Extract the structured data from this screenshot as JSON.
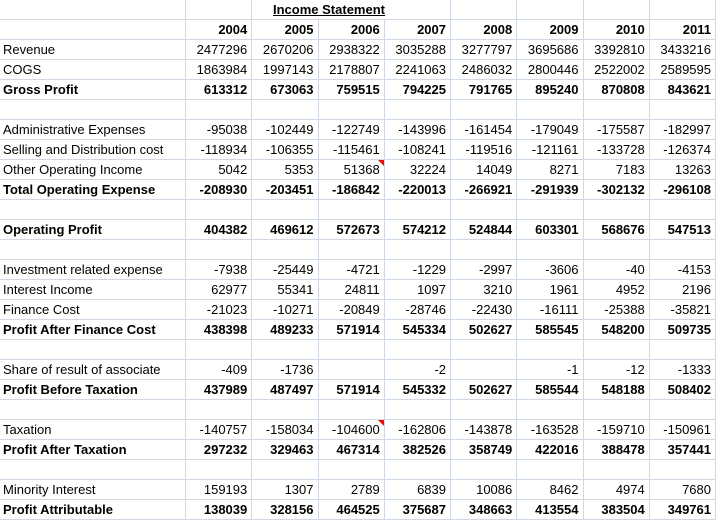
{
  "sheet": {
    "title": "Income Statement",
    "columns": [
      "2004",
      "2005",
      "2006",
      "2007",
      "2008",
      "2009",
      "2010",
      "2011"
    ],
    "rows": [
      {
        "label": "Revenue",
        "bold": false,
        "values": [
          "2477296",
          "2670206",
          "2938322",
          "3035288",
          "3277797",
          "3695686",
          "3392810",
          "3433216"
        ]
      },
      {
        "label": "COGS",
        "bold": false,
        "values": [
          "1863984",
          "1997143",
          "2178807",
          "2241063",
          "2486032",
          "2800446",
          "2522002",
          "2589595"
        ]
      },
      {
        "label": "Gross Profit",
        "bold": true,
        "values": [
          "613312",
          "673063",
          "759515",
          "794225",
          "791765",
          "895240",
          "870808",
          "843621"
        ]
      },
      {
        "label": "",
        "bold": false,
        "values": [
          "",
          "",
          "",
          "",
          "",
          "",
          "",
          ""
        ]
      },
      {
        "label": "Administrative Expenses",
        "bold": false,
        "values": [
          "-95038",
          "-102449",
          "-122749",
          "-143996",
          "-161454",
          "-179049",
          "-175587",
          "-182997"
        ]
      },
      {
        "label": "Selling and Distribution cost",
        "bold": false,
        "values": [
          "-118934",
          "-106355",
          "-115461",
          "-108241",
          "-119516",
          "-121161",
          "-133728",
          "-126374"
        ]
      },
      {
        "label": "Other Operating Income",
        "bold": false,
        "comment_col": 2,
        "values": [
          "5042",
          "5353",
          "51368",
          "32224",
          "14049",
          "8271",
          "7183",
          "13263"
        ]
      },
      {
        "label": "Total Operating Expense",
        "bold": true,
        "values": [
          "-208930",
          "-203451",
          "-186842",
          "-220013",
          "-266921",
          "-291939",
          "-302132",
          "-296108"
        ]
      },
      {
        "label": "",
        "bold": false,
        "values": [
          "",
          "",
          "",
          "",
          "",
          "",
          "",
          ""
        ]
      },
      {
        "label": "Operating Profit",
        "bold": true,
        "values": [
          "404382",
          "469612",
          "572673",
          "574212",
          "524844",
          "603301",
          "568676",
          "547513"
        ]
      },
      {
        "label": "",
        "bold": false,
        "values": [
          "",
          "",
          "",
          "",
          "",
          "",
          "",
          ""
        ]
      },
      {
        "label": "Investment related expense",
        "bold": false,
        "values": [
          "-7938",
          "-25449",
          "-4721",
          "-1229",
          "-2997",
          "-3606",
          "-40",
          "-4153"
        ]
      },
      {
        "label": "Interest Income",
        "bold": false,
        "values": [
          "62977",
          "55341",
          "24811",
          "1097",
          "3210",
          "1961",
          "4952",
          "2196"
        ]
      },
      {
        "label": "Finance Cost",
        "bold": false,
        "values": [
          "-21023",
          "-10271",
          "-20849",
          "-28746",
          "-22430",
          "-16111",
          "-25388",
          "-35821"
        ]
      },
      {
        "label": "Profit After Finance Cost",
        "bold": true,
        "values": [
          "438398",
          "489233",
          "571914",
          "545334",
          "502627",
          "585545",
          "548200",
          "509735"
        ]
      },
      {
        "label": "",
        "bold": false,
        "values": [
          "",
          "",
          "",
          "",
          "",
          "",
          "",
          ""
        ]
      },
      {
        "label": "Share of result of associate",
        "bold": false,
        "values": [
          "-409",
          "-1736",
          "",
          "-2",
          "",
          "-1",
          "-12",
          "-1333"
        ]
      },
      {
        "label": "Profit Before Taxation",
        "bold": true,
        "values": [
          "437989",
          "487497",
          "571914",
          "545332",
          "502627",
          "585544",
          "548188",
          "508402"
        ]
      },
      {
        "label": "",
        "bold": false,
        "values": [
          "",
          "",
          "",
          "",
          "",
          "",
          "",
          ""
        ]
      },
      {
        "label": "Taxation",
        "bold": false,
        "comment_col": 2,
        "values": [
          "-140757",
          "-158034",
          "-104600",
          "-162806",
          "-143878",
          "-163528",
          "-159710",
          "-150961"
        ]
      },
      {
        "label": "Profit After Taxation",
        "bold": true,
        "values": [
          "297232",
          "329463",
          "467314",
          "382526",
          "358749",
          "422016",
          "388478",
          "357441"
        ]
      },
      {
        "label": "",
        "bold": false,
        "values": [
          "",
          "",
          "",
          "",
          "",
          "",
          "",
          ""
        ]
      },
      {
        "label": "Minority Interest",
        "bold": false,
        "values": [
          "159193",
          "1307",
          "2789",
          "6839",
          "10086",
          "8462",
          "4974",
          "7680"
        ]
      },
      {
        "label": "Profit Attributable",
        "bold": true,
        "values": [
          "138039",
          "328156",
          "464525",
          "375687",
          "348663",
          "413554",
          "383504",
          "349761"
        ]
      }
    ]
  },
  "colors": {
    "gridline": "#d0d7e5",
    "text": "#000000",
    "comment_marker": "#ff0000",
    "background": "#ffffff"
  }
}
